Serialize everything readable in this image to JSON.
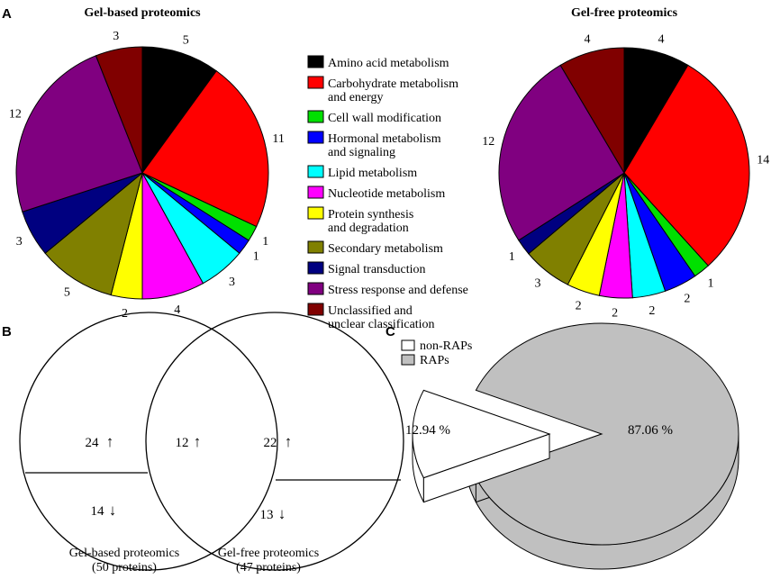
{
  "panel_labels": [
    "A",
    "B",
    "C"
  ],
  "chart_data": [
    {
      "type": "pie",
      "panel": "A",
      "title": "Gel-based proteomics",
      "categories": [
        "Amino acid metabolism",
        "Carbohydrate metabolism and energy",
        "Cell wall modification",
        "Hormonal metabolism and signaling",
        "Lipid metabolism",
        "Nucleotide metabolism",
        "Protein synthesis and degradation",
        "Secondary metabolism",
        "Signal transduction",
        "Stress response and defense",
        "Unclassified and unclear classification"
      ],
      "values": [
        5,
        11,
        1,
        1,
        3,
        4,
        2,
        5,
        3,
        12,
        3
      ],
      "labels": [
        "5",
        "11",
        "1",
        "1",
        "3",
        "4",
        "2",
        "5",
        "3",
        "12",
        "3"
      ]
    },
    {
      "type": "pie",
      "panel": "A",
      "title": "Gel-free proteomics",
      "categories": [
        "Amino acid metabolism",
        "Carbohydrate metabolism and energy",
        "Cell wall modification",
        "Hormonal metabolism and signaling",
        "Lipid metabolism",
        "Nucleotide metabolism",
        "Protein synthesis and degradation",
        "Secondary metabolism",
        "Signal transduction",
        "Stress response and defense",
        "Unclassified and unclear classification"
      ],
      "values": [
        4,
        14,
        1,
        2,
        2,
        2,
        2,
        3,
        1,
        12,
        4
      ],
      "labels": [
        "4",
        "14",
        "1",
        "2",
        "2",
        "2",
        "2",
        "3",
        "1",
        "12",
        "4"
      ]
    },
    {
      "type": "venn",
      "panel": "B",
      "sets": [
        {
          "name_line1": "Gel-based proteomics",
          "name_line2": "(50 proteins)",
          "up": "24",
          "down": "14"
        },
        {
          "name_line1": "Gel-free proteomics",
          "name_line2": "(47 proteins)",
          "up": "22",
          "down": "13"
        }
      ],
      "overlap_up": "12",
      "up_arrow": "↑",
      "down_arrow": "↓"
    },
    {
      "type": "pie",
      "panel": "C",
      "style": "3d-exploded",
      "categories": [
        "non-RAPs",
        "RAPs"
      ],
      "values": [
        12.94,
        87.06
      ],
      "labels": [
        "12.94 %",
        "87.06 %"
      ]
    }
  ],
  "legend": {
    "items": [
      {
        "line1": "Amino acid metabolism",
        "line2": "",
        "color": "#000000"
      },
      {
        "line1": "Carbohydrate metabolism",
        "line2": "and energy",
        "color": "#ff0000"
      },
      {
        "line1": "Cell wall modification",
        "line2": "",
        "color": "#00e000"
      },
      {
        "line1": "Hormonal metabolism",
        "line2": "and signaling",
        "color": "#0000ff"
      },
      {
        "line1": "Lipid metabolism",
        "line2": "",
        "color": "#00ffff"
      },
      {
        "line1": "Nucleotide metabolism",
        "line2": "",
        "color": "#ff00ff"
      },
      {
        "line1": "Protein synthesis",
        "line2": "and degradation",
        "color": "#ffff00"
      },
      {
        "line1": "Secondary metabolism",
        "line2": "",
        "color": "#808000"
      },
      {
        "line1": "Signal transduction",
        "line2": "",
        "color": "#000080"
      },
      {
        "line1": "Stress response and defense",
        "line2": "",
        "color": "#800080"
      },
      {
        "line1": "Unclassified and",
        "line2": "unclear classification",
        "color": "#800000"
      }
    ]
  },
  "c_legend": [
    {
      "label": "non-RAPs",
      "color": "#ffffff"
    },
    {
      "label": "RAPs",
      "color": "#c0c0c0"
    }
  ]
}
